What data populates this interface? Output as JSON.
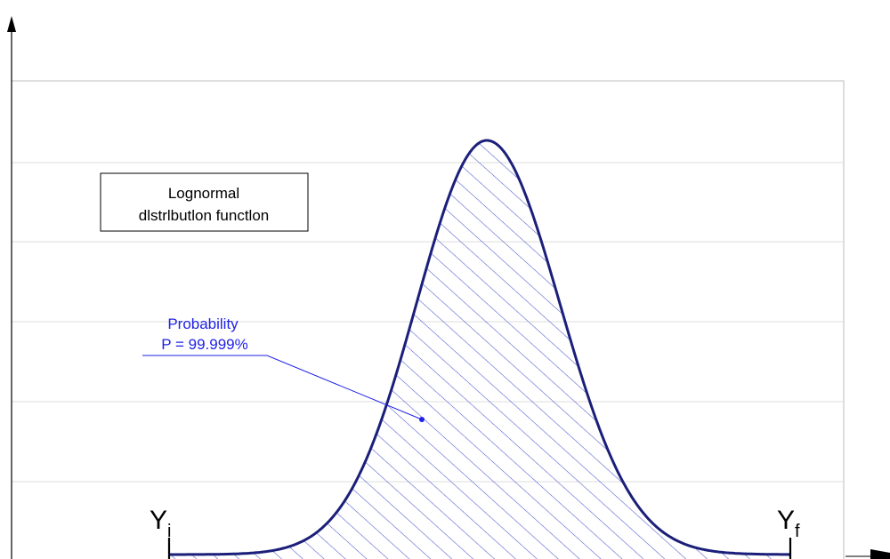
{
  "chart_data": {
    "type": "line",
    "title": "",
    "xlabel": "",
    "ylabel": "",
    "grid": true,
    "legend_box": {
      "line1": "Lognormal",
      "line2": "dlstrlbutlon functlon"
    },
    "annotation": {
      "line1": "Probability",
      "line2": "P = 99.999%",
      "color": "#1f22e6"
    },
    "bounds": {
      "lower": {
        "base": "Y",
        "sub": "i"
      },
      "upper": {
        "base": "Y",
        "sub": "f"
      }
    },
    "curve_color": "#1b1f7a",
    "hatch_color": "#4a55c8",
    "grid_color": "#dcdcdc"
  }
}
